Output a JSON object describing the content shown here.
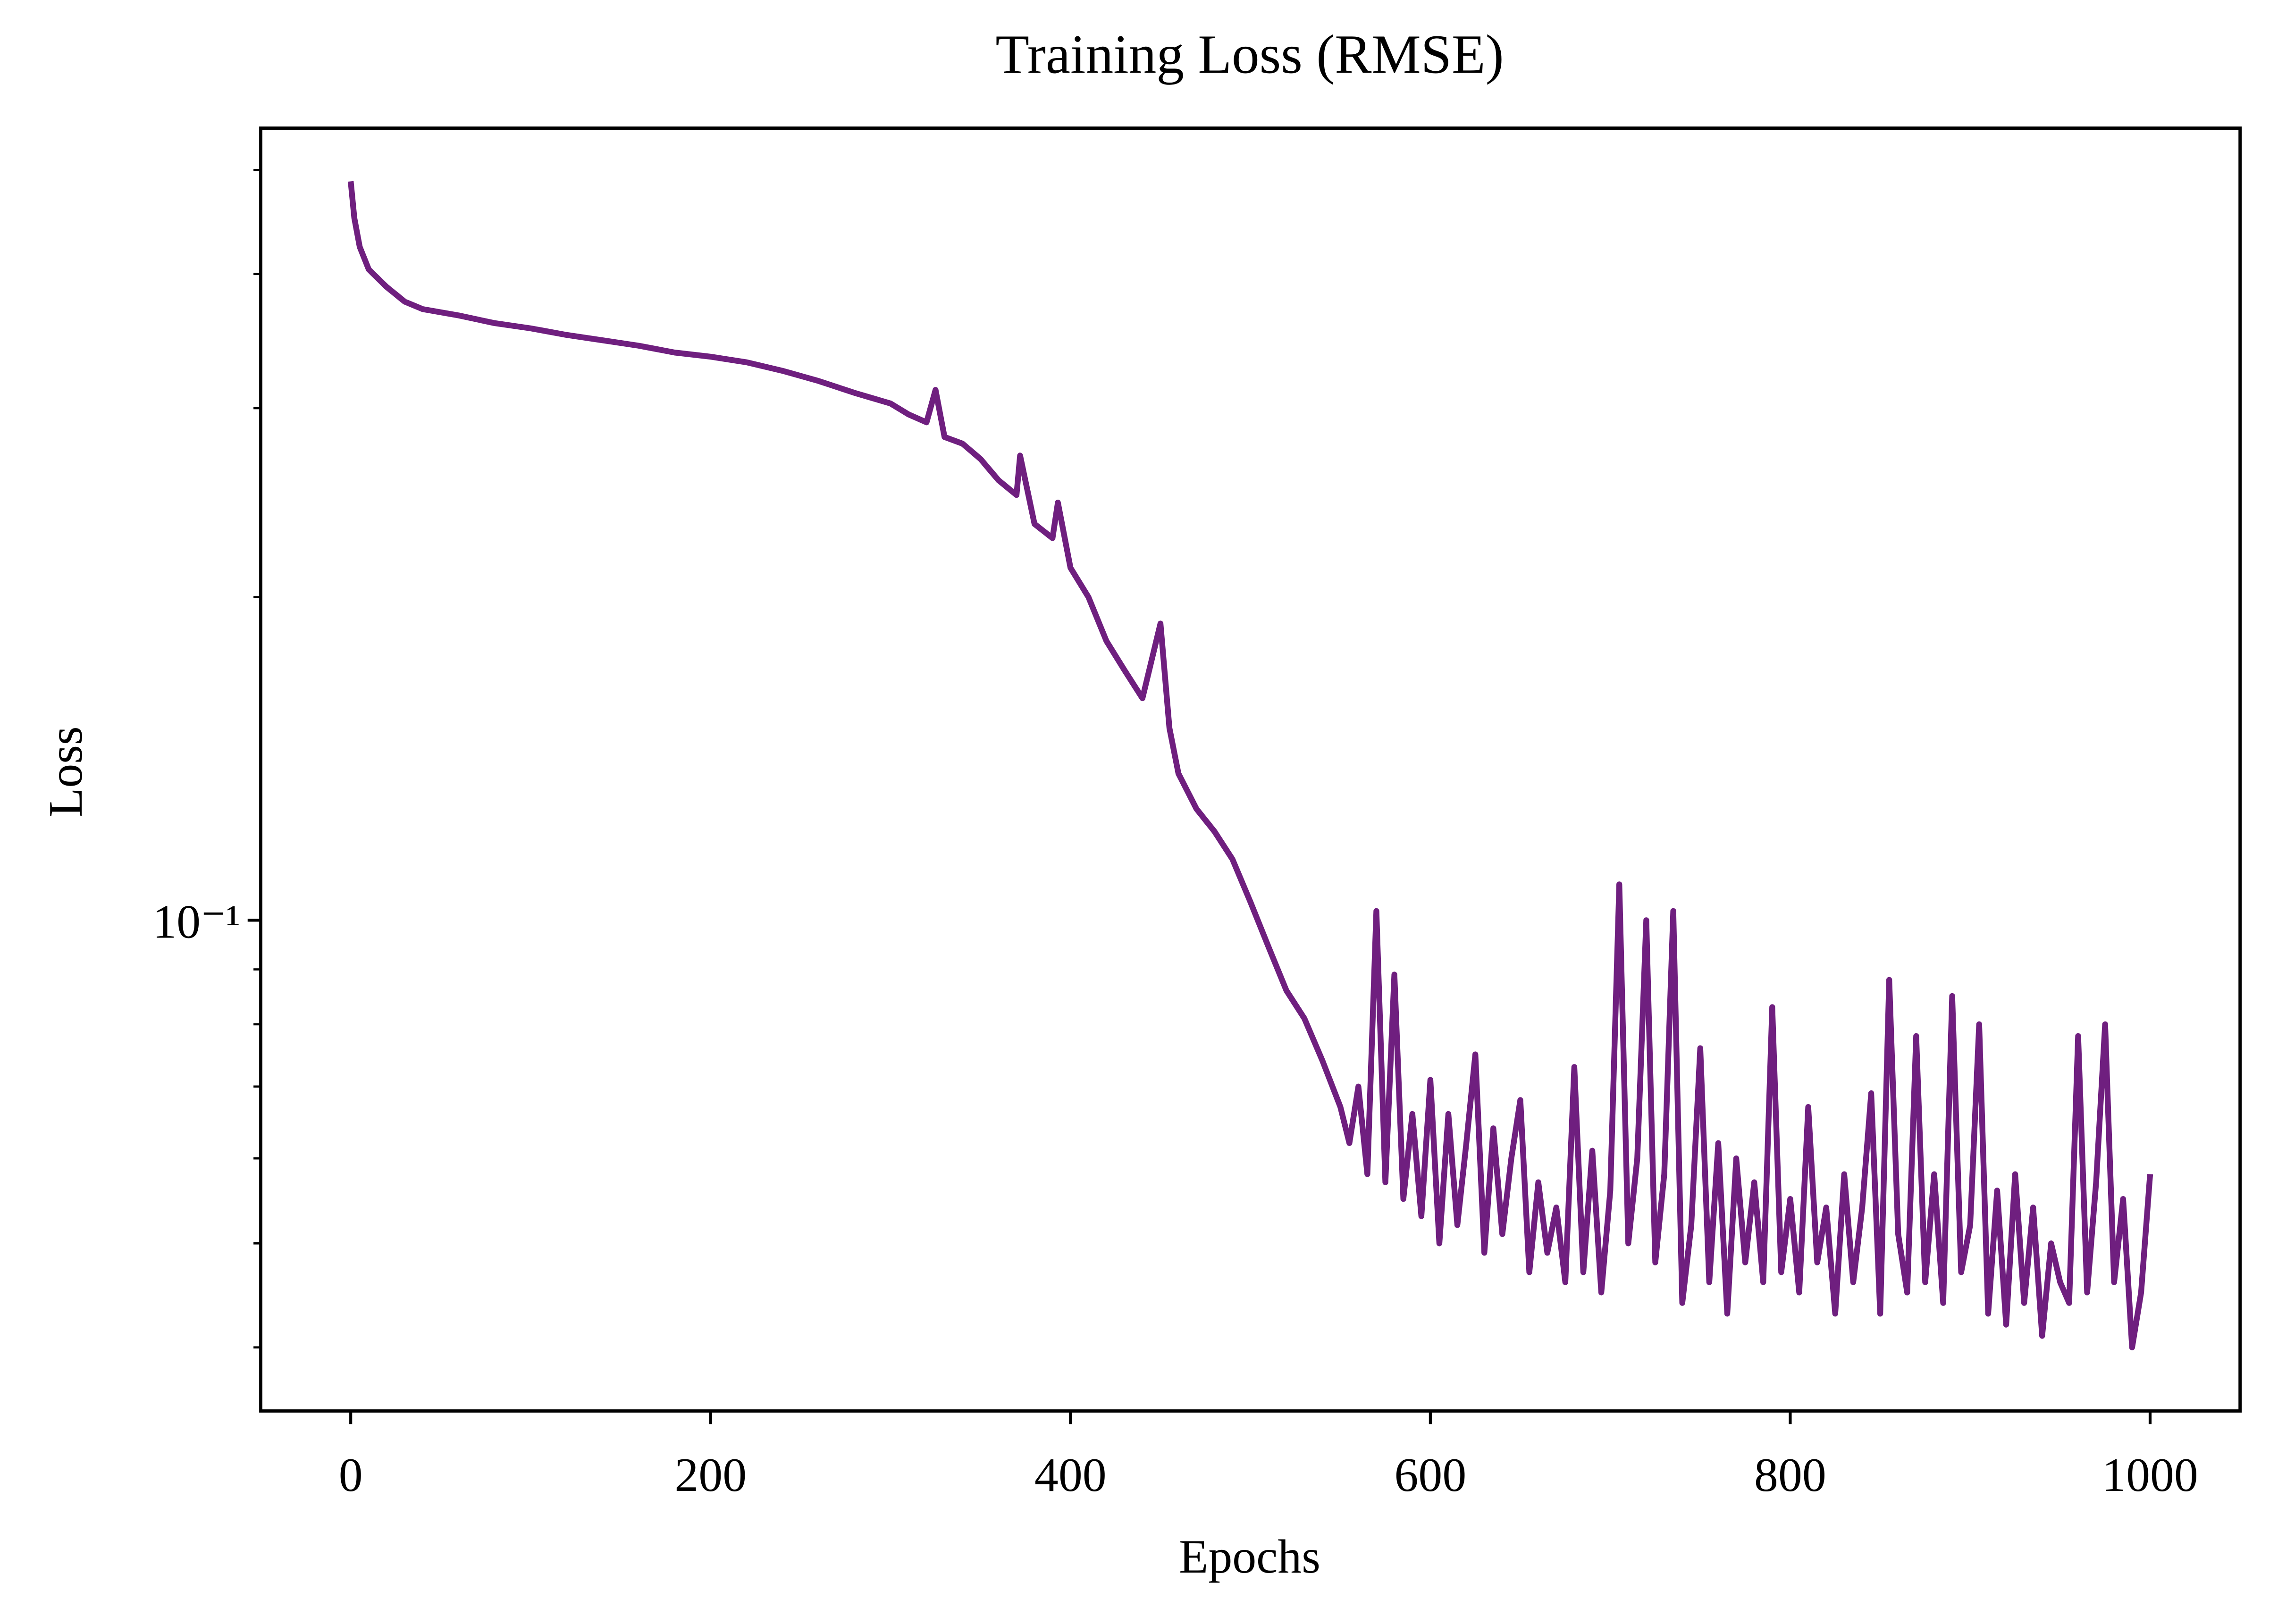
{
  "chart_data": {
    "type": "line",
    "title": "Training Loss (RMSE)",
    "xlabel": "Epochs",
    "ylabel": "Loss",
    "yscale": "log",
    "xlim": [
      -50,
      1050
    ],
    "ylim": [
      0.0349,
      0.547
    ],
    "xticks": [
      0,
      200,
      400,
      600,
      800,
      1000
    ],
    "yticks": [
      {
        "value": 0.1,
        "label": "10⁻¹"
      }
    ],
    "yticks_minor": [
      0.04,
      0.05,
      0.06,
      0.07,
      0.08,
      0.09,
      0.2,
      0.3,
      0.4,
      0.5
    ],
    "x": [
      0,
      2,
      5,
      10,
      20,
      30,
      40,
      60,
      80,
      100,
      120,
      140,
      160,
      180,
      200,
      220,
      240,
      260,
      280,
      300,
      310,
      320,
      325,
      330,
      340,
      350,
      360,
      370,
      372,
      380,
      390,
      393,
      400,
      410,
      420,
      430,
      440,
      450,
      455,
      460,
      470,
      480,
      490,
      500,
      510,
      520,
      530,
      540,
      550,
      555,
      560,
      565,
      570,
      575,
      580,
      585,
      590,
      595,
      600,
      605,
      610,
      615,
      620,
      625,
      630,
      635,
      640,
      645,
      650,
      655,
      660,
      665,
      670,
      675,
      680,
      685,
      690,
      695,
      700,
      705,
      710,
      715,
      720,
      725,
      730,
      735,
      740,
      745,
      750,
      755,
      760,
      765,
      770,
      775,
      780,
      785,
      790,
      795,
      800,
      805,
      810,
      815,
      820,
      825,
      830,
      835,
      840,
      845,
      850,
      855,
      860,
      865,
      870,
      875,
      880,
      885,
      890,
      895,
      900,
      905,
      910,
      915,
      920,
      925,
      930,
      935,
      940,
      945,
      950,
      955,
      960,
      965,
      970,
      975,
      980,
      985,
      990,
      995,
      1000
    ],
    "series": [
      {
        "name": "Loss",
        "color": "#6f1f7f",
        "values": [
          0.488,
          0.451,
          0.424,
          0.404,
          0.389,
          0.377,
          0.371,
          0.366,
          0.36,
          0.356,
          0.351,
          0.347,
          0.343,
          0.338,
          0.335,
          0.331,
          0.325,
          0.318,
          0.31,
          0.303,
          0.296,
          0.291,
          0.312,
          0.282,
          0.278,
          0.269,
          0.257,
          0.249,
          0.271,
          0.234,
          0.227,
          0.245,
          0.213,
          0.2,
          0.182,
          0.171,
          0.161,
          0.189,
          0.151,
          0.137,
          0.127,
          0.121,
          0.114,
          0.104,
          0.0945,
          0.086,
          0.081,
          0.074,
          0.067,
          0.062,
          0.07,
          0.058,
          0.102,
          0.057,
          0.089,
          0.055,
          0.066,
          0.053,
          0.071,
          0.05,
          0.066,
          0.052,
          0.062,
          0.075,
          0.049,
          0.064,
          0.051,
          0.06,
          0.068,
          0.047,
          0.057,
          0.049,
          0.054,
          0.046,
          0.073,
          0.047,
          0.061,
          0.045,
          0.056,
          0.108,
          0.05,
          0.06,
          0.1,
          0.048,
          0.058,
          0.102,
          0.044,
          0.052,
          0.076,
          0.046,
          0.062,
          0.043,
          0.06,
          0.048,
          0.057,
          0.046,
          0.083,
          0.047,
          0.055,
          0.045,
          0.067,
          0.048,
          0.054,
          0.043,
          0.058,
          0.046,
          0.054,
          0.069,
          0.043,
          0.088,
          0.051,
          0.045,
          0.078,
          0.046,
          0.058,
          0.044,
          0.085,
          0.047,
          0.052,
          0.08,
          0.043,
          0.056,
          0.042,
          0.058,
          0.044,
          0.054,
          0.041,
          0.05,
          0.046,
          0.044,
          0.078,
          0.045,
          0.057,
          0.08,
          0.046,
          0.055,
          0.04,
          0.045,
          0.058
        ]
      }
    ]
  }
}
